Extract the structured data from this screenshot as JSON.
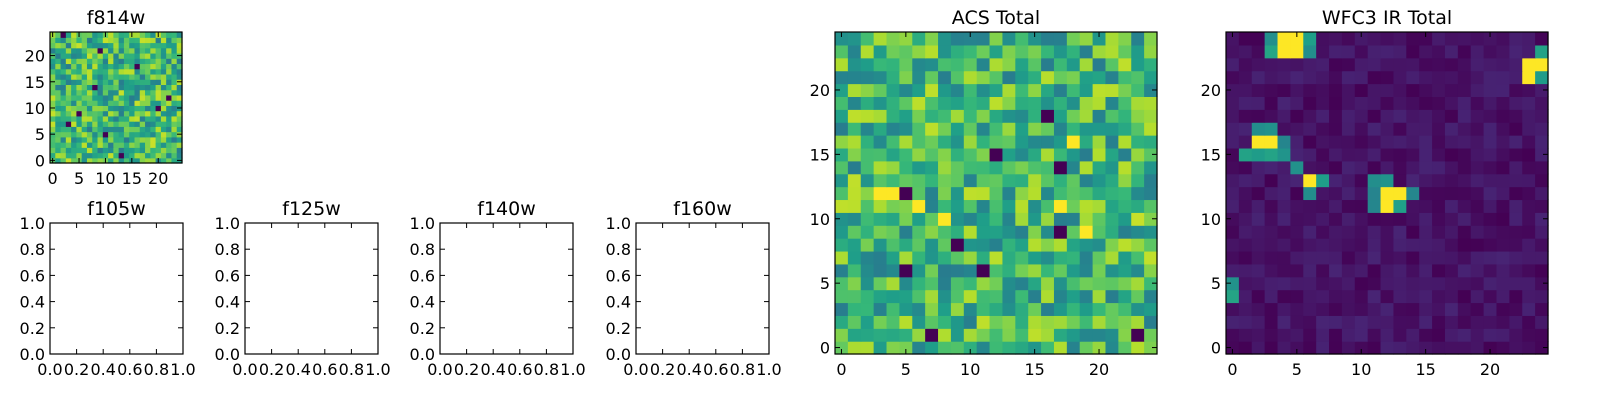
{
  "chart_data": [
    {
      "type": "heatmap",
      "title": "f814w",
      "grid_size": 25,
      "colormap": "viridis",
      "pattern": "uniform-noise",
      "dark_pixels": [
        [
          3,
          7
        ],
        [
          10,
          5
        ],
        [
          20,
          10
        ],
        [
          8,
          14
        ],
        [
          2,
          24
        ],
        [
          13,
          1
        ],
        [
          16,
          18
        ],
        [
          9,
          21
        ],
        [
          22,
          12
        ],
        [
          5,
          9
        ]
      ],
      "bright_pixels": [],
      "xticks": [
        "0",
        "5",
        "10",
        "15",
        "20"
      ],
      "yticks": [
        "0",
        "5",
        "10",
        "15",
        "20"
      ],
      "xlim": [
        -0.5,
        24.5
      ],
      "ylim": [
        -0.5,
        24.5
      ]
    },
    {
      "type": "heatmap",
      "title": "f105w",
      "empty": true,
      "xticks": [
        "0.0",
        "0.2",
        "0.4",
        "0.6",
        "0.8",
        "1.0"
      ],
      "yticks": [
        "0.0",
        "0.2",
        "0.4",
        "0.6",
        "0.8",
        "1.0"
      ],
      "xlim": [
        0,
        1
      ],
      "ylim": [
        0,
        1
      ]
    },
    {
      "type": "heatmap",
      "title": "f125w",
      "empty": true,
      "xticks": [
        "0.0",
        "0.2",
        "0.4",
        "0.6",
        "0.8",
        "1.0"
      ],
      "yticks": [
        "0.0",
        "0.2",
        "0.4",
        "0.6",
        "0.8",
        "1.0"
      ],
      "xlim": [
        0,
        1
      ],
      "ylim": [
        0,
        1
      ]
    },
    {
      "type": "heatmap",
      "title": "f140w",
      "empty": true,
      "xticks": [
        "0.0",
        "0.2",
        "0.4",
        "0.6",
        "0.8",
        "1.0"
      ],
      "yticks": [
        "0.0",
        "0.2",
        "0.4",
        "0.6",
        "0.8",
        "1.0"
      ],
      "xlim": [
        0,
        1
      ],
      "ylim": [
        0,
        1
      ]
    },
    {
      "type": "heatmap",
      "title": "f160w",
      "empty": true,
      "xticks": [
        "0.0",
        "0.2",
        "0.4",
        "0.6",
        "0.8",
        "1.0"
      ],
      "yticks": [
        "0.0",
        "0.2",
        "0.4",
        "0.6",
        "0.8",
        "1.0"
      ],
      "xlim": [
        0,
        1
      ],
      "ylim": [
        0,
        1
      ]
    },
    {
      "type": "heatmap",
      "title": "ACS Total",
      "grid_size": 25,
      "colormap": "viridis",
      "pattern": "uniform-noise",
      "dark_pixels": [
        [
          5,
          12
        ],
        [
          16,
          18
        ],
        [
          17,
          14
        ],
        [
          7,
          1
        ],
        [
          23,
          1
        ],
        [
          11,
          6
        ],
        [
          17,
          9
        ],
        [
          5,
          6
        ],
        [
          12,
          15
        ],
        [
          9,
          8
        ]
      ],
      "bright_pixels": [
        [
          4,
          12
        ],
        [
          3,
          12
        ],
        [
          6,
          11
        ],
        [
          17,
          11
        ],
        [
          19,
          9
        ],
        [
          8,
          10
        ],
        [
          18,
          16
        ]
      ],
      "xticks": [
        "0",
        "5",
        "10",
        "15",
        "20"
      ],
      "yticks": [
        "0",
        "5",
        "10",
        "15",
        "20"
      ],
      "xlim": [
        -0.5,
        24.5
      ],
      "ylim": [
        -0.5,
        24.5
      ]
    },
    {
      "type": "heatmap",
      "title": "WFC3 IR Total",
      "grid_size": 25,
      "colormap": "viridis",
      "pattern": "dark-background-with-point-sources",
      "bright_pixels": [
        [
          4,
          24
        ],
        [
          5,
          24
        ],
        [
          4,
          23
        ],
        [
          5,
          23
        ],
        [
          2,
          16
        ],
        [
          3,
          16
        ],
        [
          6,
          13
        ],
        [
          12,
          12
        ],
        [
          13,
          12
        ],
        [
          12,
          11
        ],
        [
          23,
          22
        ],
        [
          24,
          22
        ],
        [
          23,
          21
        ]
      ],
      "medium_pixels": [
        [
          3,
          24
        ],
        [
          6,
          24
        ],
        [
          3,
          23
        ],
        [
          6,
          23
        ],
        [
          2,
          17
        ],
        [
          3,
          17
        ],
        [
          4,
          16
        ],
        [
          1,
          15
        ],
        [
          2,
          15
        ],
        [
          3,
          15
        ],
        [
          4,
          15
        ],
        [
          5,
          14
        ],
        [
          7,
          13
        ],
        [
          6,
          12
        ],
        [
          11,
          13
        ],
        [
          12,
          13
        ],
        [
          11,
          12
        ],
        [
          14,
          12
        ],
        [
          11,
          11
        ],
        [
          13,
          11
        ],
        [
          24,
          21
        ],
        [
          24,
          23
        ],
        [
          0,
          5
        ],
        [
          0,
          4
        ]
      ],
      "xticks": [
        "0",
        "5",
        "10",
        "15",
        "20"
      ],
      "yticks": [
        "0",
        "5",
        "10",
        "15",
        "20"
      ],
      "xlim": [
        -0.5,
        24.5
      ],
      "ylim": [
        -0.5,
        24.5
      ]
    }
  ]
}
